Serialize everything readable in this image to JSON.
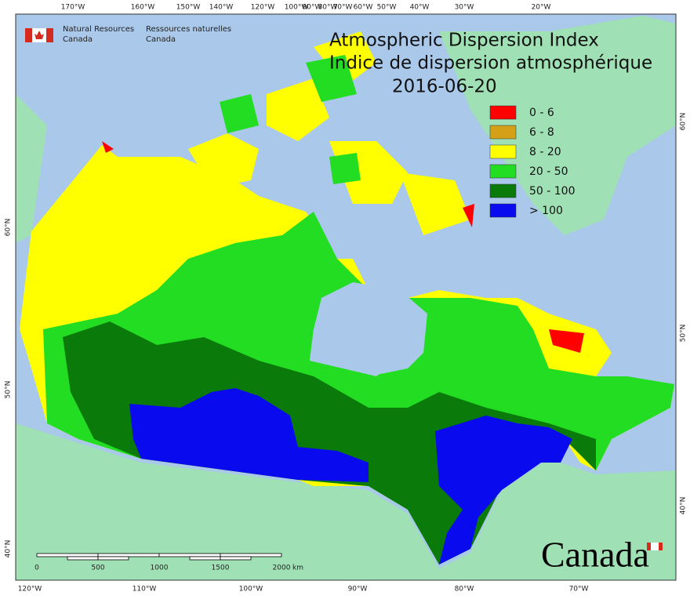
{
  "header": {
    "agency_en": [
      "Natural Resources",
      "Canada"
    ],
    "agency_fr": [
      "Ressources naturelles",
      "Canada"
    ]
  },
  "title": [
    "Atmospheric Dispersion Index",
    "Indice de dispersion atmosphérique"
  ],
  "date": "2016-06-20",
  "legend": [
    {
      "label": "0 - 6",
      "color": "#ff0000"
    },
    {
      "label": "6 - 8",
      "color": "#d4a017"
    },
    {
      "label": "8 - 20",
      "color": "#ffff00"
    },
    {
      "label": "20 - 50",
      "color": "#22dd22"
    },
    {
      "label": "50 - 100",
      "color": "#0a7a0a"
    },
    {
      "label": "> 100",
      "color": "#0a0aee"
    }
  ],
  "top_lon_labels": [
    "170°W",
    "160°W",
    "150°W",
    "140°W",
    "120°W",
    "100°W",
    "90°W",
    "80°W",
    "70°W",
    "60°W",
    "50°W",
    "40°W",
    "30°W",
    "20°W"
  ],
  "bottom_lon_labels": [
    "120°W",
    "110°W",
    "100°W",
    "90°W",
    "80°W",
    "70°W"
  ],
  "left_lat_labels": [
    "60°N",
    "50°N",
    "40°N"
  ],
  "right_lat_labels": [
    "60°N",
    "50°N",
    "40°N"
  ],
  "scale_bar": {
    "labels": [
      "0",
      "500",
      "1000",
      "1500",
      "2000"
    ],
    "unit": "km"
  },
  "wordmark": "Canada"
}
